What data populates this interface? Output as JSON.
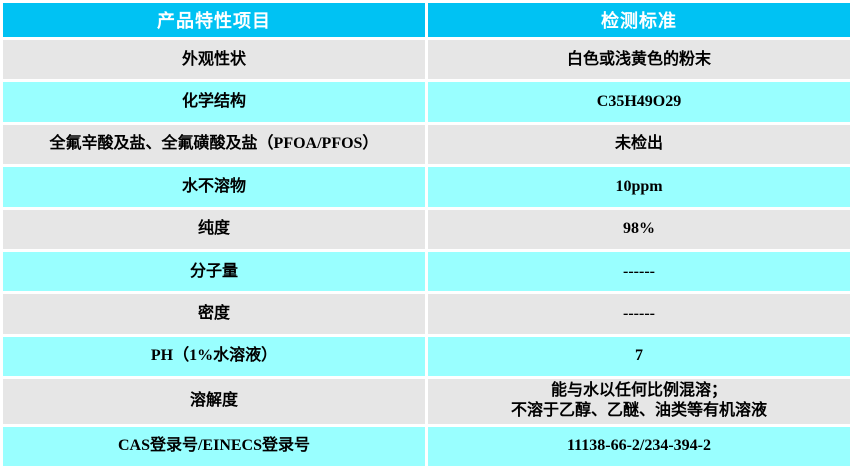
{
  "table": {
    "columns": [
      {
        "label": "产品特性项目"
      },
      {
        "label": "检测标准"
      }
    ],
    "rows": [
      {
        "item": "外观性状",
        "standard": "白色或浅黄色的粉末"
      },
      {
        "item": "化学结构",
        "standard": "C35H49O29"
      },
      {
        "item": "全氟辛酸及盐、全氟磺酸及盐（PFOA/PFOS）",
        "standard": "未检出"
      },
      {
        "item": "水不溶物",
        "standard": "10ppm"
      },
      {
        "item": "纯度",
        "standard": "98%"
      },
      {
        "item": "分子量",
        "standard": "------"
      },
      {
        "item": "密度",
        "standard": "------"
      },
      {
        "item": "PH（1%水溶液）",
        "standard": "7"
      },
      {
        "item": "溶解度",
        "standard": "能与水以任何比例混溶；\n不溶于乙醇、乙醚、油类等有机溶液"
      },
      {
        "item": "CAS登录号/EINECS登录号",
        "standard": "11138-66-2/234-394-2"
      }
    ],
    "colors": {
      "header_bg": "#00c2f3",
      "header_text": "#ffffff",
      "row_gray": "#e6e6e6",
      "row_cyan": "#99ffff",
      "body_text": "#000000",
      "border": "#ffffff"
    }
  }
}
